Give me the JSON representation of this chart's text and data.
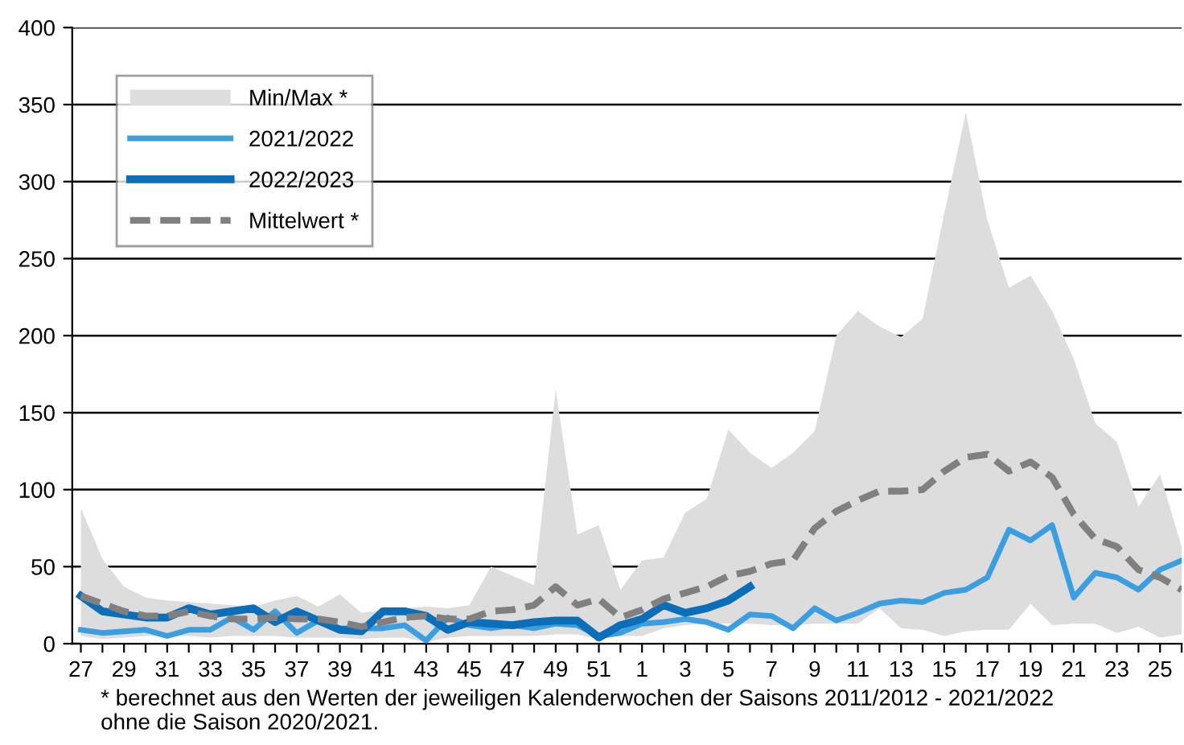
{
  "chart_data": {
    "type": "line",
    "categories": [
      "27",
      null,
      "29",
      null,
      "31",
      null,
      "33",
      null,
      "35",
      null,
      "37",
      null,
      "39",
      null,
      "41",
      null,
      "43",
      null,
      "45",
      null,
      "47",
      null,
      "49",
      null,
      "51",
      null,
      "1",
      null,
      "3",
      null,
      "5",
      null,
      "7",
      null,
      "9",
      null,
      "11",
      null,
      "13",
      null,
      "15",
      null,
      "17",
      null,
      "19",
      null,
      "21",
      null,
      "23",
      null,
      "25",
      null
    ],
    "series": [
      {
        "name": "Min/Max *",
        "type": "area",
        "color": "#dddddd",
        "values": [
          88,
          55,
          37,
          30,
          28,
          27,
          26,
          25,
          24,
          28,
          31,
          24,
          32,
          20,
          22,
          23,
          24,
          23,
          25,
          50,
          44,
          38,
          165,
          71,
          77,
          35,
          54,
          56,
          85,
          94,
          139,
          124,
          114,
          124,
          138,
          200,
          216,
          206,
          199,
          211,
          279,
          345,
          275,
          231,
          239,
          216,
          185,
          143,
          131,
          89,
          110,
          63
        ]
      },
      {
        "type": "area",
        "color": "#ffffff",
        "values": [
          5,
          3,
          4,
          5,
          5,
          5,
          4,
          5,
          5,
          5,
          4,
          4,
          4,
          3,
          4,
          4,
          1,
          4,
          5,
          5,
          5,
          5,
          6,
          6,
          3,
          5,
          5,
          10,
          12,
          13,
          13,
          13,
          12,
          12,
          13,
          13,
          13,
          23,
          10,
          9,
          5,
          8,
          9,
          9,
          26,
          12,
          13,
          13,
          7,
          11,
          4,
          6
        ]
      },
      {
        "name": "2021/2022",
        "color": "#3a9ee0",
        "line_style": "solid",
        "values": [
          9,
          7,
          8,
          9,
          5,
          9,
          9,
          17,
          9,
          21,
          7,
          15,
          10,
          10,
          10,
          12,
          2,
          17,
          12,
          10,
          12,
          10,
          13,
          12,
          5,
          7,
          13,
          14,
          16,
          14,
          9,
          19,
          18,
          10,
          23,
          15,
          20,
          26,
          28,
          27,
          33,
          35,
          43,
          74,
          67,
          77,
          30,
          46,
          43,
          35,
          48,
          54
        ]
      },
      {
        "name": "2022/2023",
        "color": "#0a6eb8",
        "line_style": "solid",
        "values": [
          31,
          21,
          19,
          17,
          17,
          23,
          19,
          21,
          23,
          14,
          21,
          15,
          9,
          8,
          21,
          21,
          18,
          9,
          14,
          13,
          12,
          14,
          15,
          15,
          4,
          12,
          16,
          25,
          20,
          23,
          28,
          37,
          null,
          null,
          null,
          null,
          null,
          null,
          null,
          null,
          null,
          null,
          null,
          null,
          null,
          null,
          null,
          null,
          null,
          null,
          null,
          null
        ]
      },
      {
        "name": "Mittelwert *",
        "color": "#808080",
        "line_style": "dashed",
        "values": [
          31,
          26,
          21,
          18,
          18,
          21,
          18,
          16,
          16,
          17,
          16,
          16,
          14,
          11,
          14,
          17,
          18,
          16,
          16,
          21,
          22,
          25,
          37,
          25,
          29,
          17,
          22,
          29,
          33,
          37,
          44,
          47,
          52,
          54,
          75,
          86,
          93,
          99,
          99,
          100,
          112,
          121,
          123,
          112,
          118,
          108,
          84,
          68,
          63,
          48,
          43,
          35
        ]
      }
    ],
    "ylim": [
      0,
      400
    ],
    "yticks": [
      0,
      50,
      100,
      150,
      200,
      250,
      300,
      350,
      400
    ],
    "grid": "y",
    "legend": "top left",
    "annotations": [
      "* berechnet aus den Werten der jeweiligen Kalenderwochen der Saisons 2011/2012 - 2021/2022\nohne die Saison 2020/2021."
    ]
  }
}
